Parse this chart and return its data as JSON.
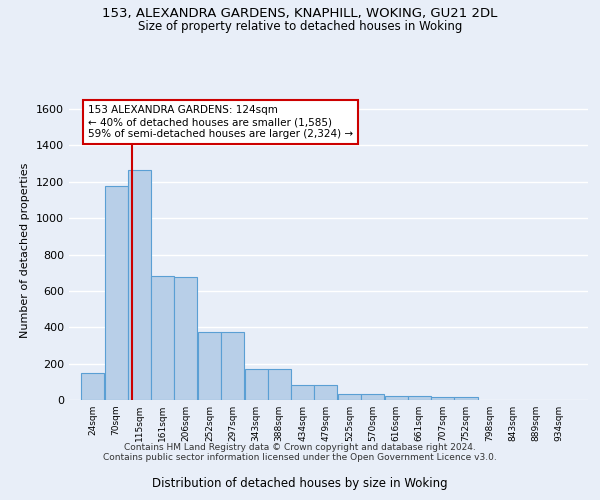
{
  "title1": "153, ALEXANDRA GARDENS, KNAPHILL, WOKING, GU21 2DL",
  "title2": "Size of property relative to detached houses in Woking",
  "xlabel": "Distribution of detached houses by size in Woking",
  "ylabel": "Number of detached properties",
  "bin_labels": [
    "24sqm",
    "70sqm",
    "115sqm",
    "161sqm",
    "206sqm",
    "252sqm",
    "297sqm",
    "343sqm",
    "388sqm",
    "434sqm",
    "479sqm",
    "525sqm",
    "570sqm",
    "616sqm",
    "661sqm",
    "707sqm",
    "752sqm",
    "798sqm",
    "843sqm",
    "889sqm",
    "934sqm"
  ],
  "bin_edges": [
    24,
    70,
    115,
    161,
    206,
    252,
    297,
    343,
    388,
    434,
    479,
    525,
    570,
    616,
    661,
    707,
    752,
    798,
    843,
    889,
    934
  ],
  "bar_heights": [
    150,
    1175,
    1265,
    680,
    675,
    375,
    375,
    170,
    170,
    85,
    85,
    35,
    35,
    20,
    20,
    15,
    15,
    0,
    0,
    0,
    0
  ],
  "bar_color": "#b8cfe8",
  "bar_edge_color": "#5a9fd4",
  "property_size": 124,
  "vline_color": "#cc0000",
  "annotation_text": "153 ALEXANDRA GARDENS: 124sqm\n← 40% of detached houses are smaller (1,585)\n59% of semi-detached houses are larger (2,324) →",
  "annotation_box_color": "#ffffff",
  "annotation_box_edge": "#cc0000",
  "ylim": [
    0,
    1650
  ],
  "yticks": [
    0,
    200,
    400,
    600,
    800,
    1000,
    1200,
    1400,
    1600
  ],
  "background_color": "#e8eef8",
  "grid_color": "#ffffff",
  "footer_text": "Contains HM Land Registry data © Crown copyright and database right 2024.\nContains public sector information licensed under the Open Government Licence v3.0."
}
